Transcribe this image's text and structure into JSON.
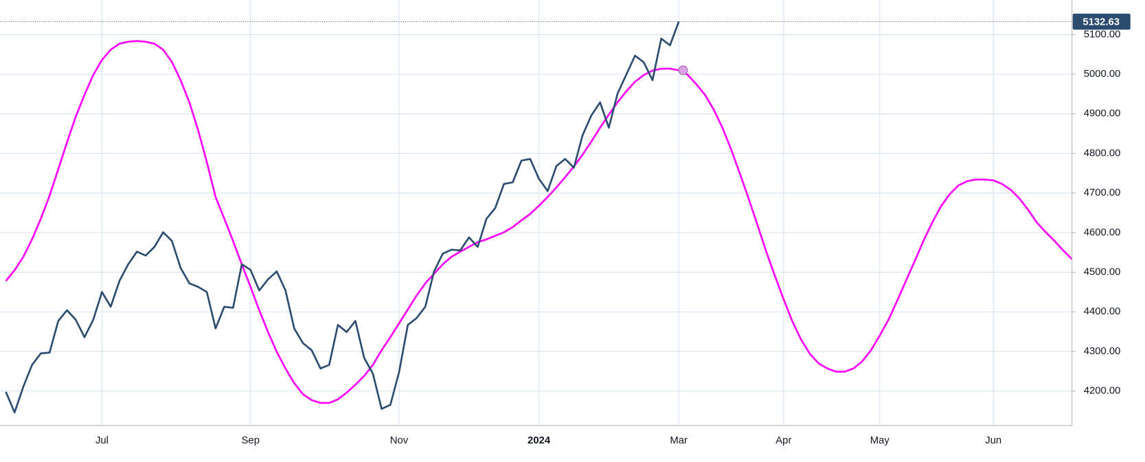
{
  "chart_data": {
    "type": "line",
    "categories": [
      null,
      null,
      null,
      null,
      null,
      null,
      null,
      null,
      null,
      null,
      null,
      "Jul",
      null,
      null,
      null,
      null,
      null,
      null,
      null,
      null,
      null,
      null,
      null,
      null,
      null,
      null,
      null,
      null,
      "Sep",
      null,
      null,
      null,
      null,
      null,
      null,
      null,
      null,
      null,
      null,
      null,
      null,
      null,
      null,
      null,
      null,
      "Nov",
      null,
      null,
      null,
      null,
      null,
      null,
      null,
      null,
      null,
      null,
      null,
      null,
      null,
      null,
      null,
      "2024",
      null,
      null,
      null,
      null,
      null,
      null,
      null,
      null,
      null,
      null,
      null,
      null,
      null,
      null,
      null,
      "Mar",
      null,
      null,
      null,
      null,
      null,
      null,
      null,
      null,
      null,
      null,
      null,
      "Apr",
      null,
      null,
      null,
      null,
      null,
      null,
      null,
      null,
      null,
      null,
      "May",
      null,
      null,
      null,
      null,
      null,
      null,
      null,
      null,
      null,
      null,
      null,
      null,
      "Jun",
      null,
      null,
      null,
      null,
      null,
      null,
      null,
      null,
      null
    ],
    "series": [
      {
        "color": "#2b4c6f",
        "values": [
          4198,
          4146,
          4211,
          4266,
          4295,
          4297,
          4377,
          4404,
          4380,
          4336,
          4380,
          4450,
          4413,
          4478,
          4520,
          4552,
          4542,
          4564,
          4601,
          4579,
          4511,
          4472,
          4463,
          4450,
          4358,
          4413,
          4410,
          4520,
          4506,
          4454,
          4482,
          4502,
          4454,
          4358,
          4321,
          4303,
          4257,
          4266,
          4367,
          4349,
          4377,
          4284,
          4244,
          4155,
          4165,
          4248,
          4367,
          4384,
          4413,
          4502,
          4547,
          4557,
          4555,
          4588,
          4564,
          4635,
          4662,
          4723,
          4727,
          4782,
          4786,
          4736,
          4705,
          4768,
          4786,
          4764,
          4846,
          4896,
          4929,
          4865,
          4951,
          4999,
          5047,
          5030,
          4985,
          5090,
          5073,
          5132.63,
          null,
          null,
          null,
          null,
          null,
          null,
          null,
          null,
          null,
          null,
          null,
          null,
          null,
          null,
          null,
          null,
          null,
          null,
          null,
          null,
          null,
          null,
          null,
          null,
          null,
          null,
          null,
          null,
          null,
          null,
          null,
          null,
          null,
          null,
          null,
          null,
          null,
          null,
          null,
          null,
          null,
          null,
          null,
          null,
          null
        ]
      },
      {
        "color": "#ff00ff",
        "values": [
          4478,
          4505,
          4539,
          4583,
          4635,
          4693,
          4760,
          4828,
          4893,
          4948,
          4998,
          5036,
          5062,
          5077,
          5082,
          5084,
          5082,
          5077,
          5062,
          5031,
          4985,
          4929,
          4859,
          4778,
          4690,
          4635,
          4579,
          4520,
          4463,
          4404,
          4349,
          4299,
          4257,
          4220,
          4192,
          4177,
          4170,
          4170,
          4179,
          4196,
          4216,
          4238,
          4266,
          4303,
          4336,
          4371,
          4406,
          4441,
          4472,
          4496,
          4520,
          4539,
          4552,
          4564,
          4576,
          4583,
          4592,
          4601,
          4614,
          4631,
          4647,
          4668,
          4690,
          4714,
          4740,
          4767,
          4797,
          4830,
          4865,
          4898,
          4929,
          4957,
          4981,
          4998,
          5009,
          5014,
          5014,
          5010,
          4999,
          4975,
          4948,
          4911,
          4865,
          4810,
          4749,
          4686,
          4620,
          4553,
          4491,
          4432,
          4376,
          4330,
          4294,
          4270,
          4257,
          4249,
          4249,
          4257,
          4275,
          4303,
          4340,
          4380,
          4428,
          4478,
          4528,
          4579,
          4625,
          4666,
          4697,
          4719,
          4730,
          4734,
          4734,
          4732,
          4723,
          4708,
          4686,
          4657,
          4625,
          4601,
          4579,
          4555,
          4533
        ]
      }
    ],
    "ylim": [
      4113,
      5180
    ],
    "yticks": [
      {
        "value": 4200,
        "label": "4200.00"
      },
      {
        "value": 4300,
        "label": "4300.00"
      },
      {
        "value": 4400,
        "label": "4400.00"
      },
      {
        "value": 4500,
        "label": "4500.00"
      },
      {
        "value": 4600,
        "label": "4600.00"
      },
      {
        "value": 4700,
        "label": "4700.00"
      },
      {
        "value": 4800,
        "label": "4800.00"
      },
      {
        "value": 4900,
        "label": "4900.00"
      },
      {
        "value": 5000,
        "label": "5000.00"
      },
      {
        "value": 5100,
        "label": "5100.00"
      }
    ],
    "grid": true,
    "grid_color": "#d6e2f1",
    "marker_color": "#d9a3e3"
  }
}
